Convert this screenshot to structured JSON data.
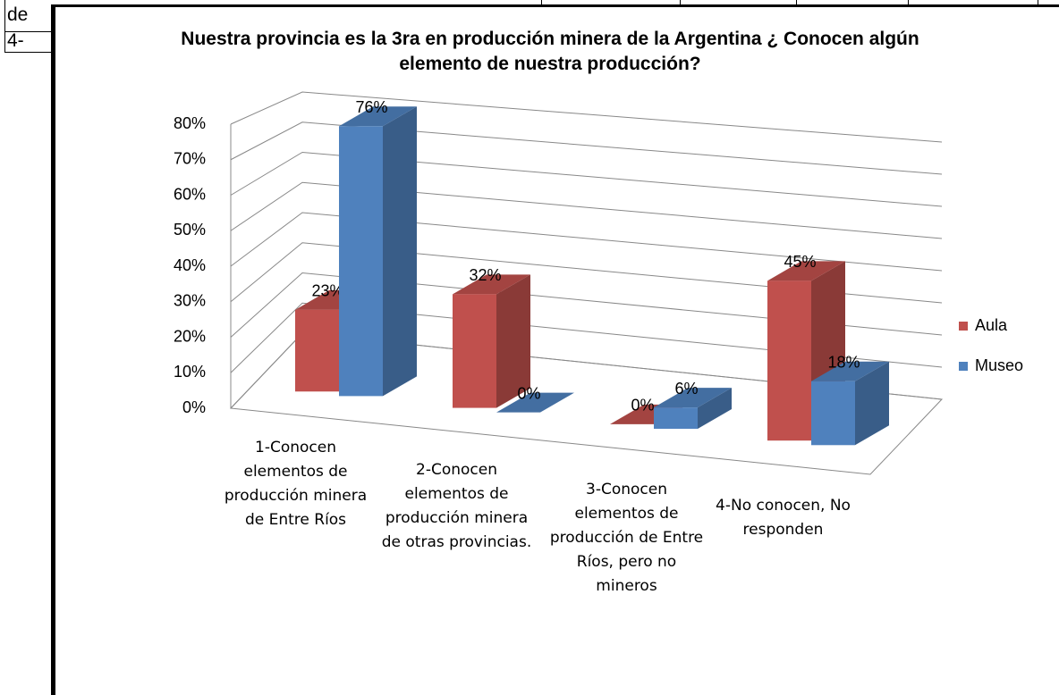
{
  "table": {
    "rows": [
      [
        "de"
      ],
      [
        "4-"
      ]
    ]
  },
  "chart_data": {
    "type": "bar",
    "title": "Nuestra provincia es la 3ra en producción minera de la Argentina ¿ Conocen algún elemento de nuestra producción?",
    "categories": [
      "1-Conocen elementos de producción minera de Entre Ríos",
      "2-Conocen elementos de producción minera de otras provincias.",
      "3-Conocen elementos de producción de Entre Ríos, pero no mineros",
      "4-No conocen, No responden"
    ],
    "series": [
      {
        "name": "Aula",
        "color": "#c0504d",
        "values": [
          23,
          32,
          0,
          45
        ],
        "value_labels": [
          "23%",
          "32%",
          "0%",
          "45%"
        ]
      },
      {
        "name": "Museo",
        "color": "#4f81bd",
        "values": [
          76,
          0,
          6,
          18
        ],
        "value_labels": [
          "76%",
          "0%",
          "6%",
          "18%"
        ]
      }
    ],
    "ylim": [
      0,
      80
    ],
    "yticks": [
      {
        "value": 0,
        "label": "0%"
      },
      {
        "value": 10,
        "label": "10%"
      },
      {
        "value": 20,
        "label": "20%"
      },
      {
        "value": 30,
        "label": "30%"
      },
      {
        "value": 40,
        "label": "40%"
      },
      {
        "value": 50,
        "label": "50%"
      },
      {
        "value": 60,
        "label": "60%"
      },
      {
        "value": 70,
        "label": "70%"
      },
      {
        "value": 80,
        "label": "80%"
      }
    ],
    "grid": true,
    "legend": "right"
  }
}
